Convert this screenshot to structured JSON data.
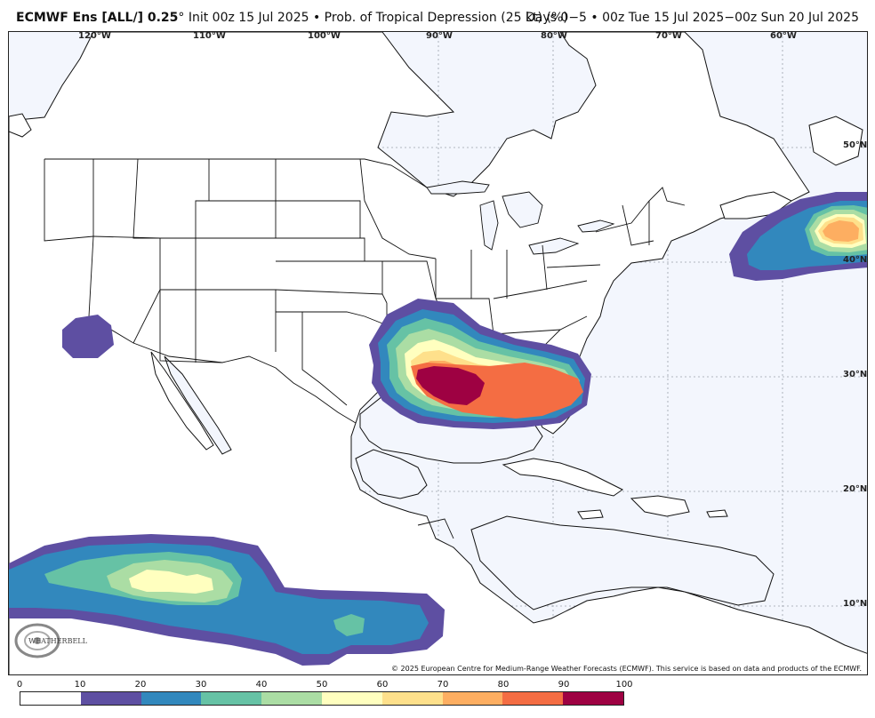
{
  "header": {
    "title_bold": "ECMWF Ens [ALL/] 0.25",
    "title_degree": "°",
    "title_rest": " Init 00z 15 Jul 2025 • Prob. of Tropical Depression (25 kt) (%)",
    "days": "Days 0−5 • 00z Tue 15 Jul 2025−00z Sun 20 Jul 2025"
  },
  "map": {
    "lon_labels": [
      "120°W",
      "110°W",
      "100°W",
      "90°W",
      "80°W",
      "70°W",
      "60°W"
    ],
    "lat_labels": [
      "50°N",
      "40°N",
      "30°N",
      "20°N",
      "10°N"
    ],
    "copyright": "© 2025 European Centre for Medium-Range Weather Forecasts (ECMWF). This service is based on data and products of the ECMWF.",
    "logo_text": "WEATHERBELL",
    "colors": {
      "ocean": "#f3f6fd",
      "land": "#ffffff",
      "border": "#111111"
    }
  },
  "colorbar": {
    "ticks": [
      "0",
      "10",
      "20",
      "30",
      "40",
      "50",
      "60",
      "70",
      "80",
      "90",
      "100"
    ],
    "colors": [
      "#ffffff",
      "#5e4fa2",
      "#3288bd",
      "#66c2a5",
      "#abdda4",
      "#ffffbf",
      "#fee08b",
      "#fdae61",
      "#f46d43",
      "#9e0142"
    ]
  }
}
